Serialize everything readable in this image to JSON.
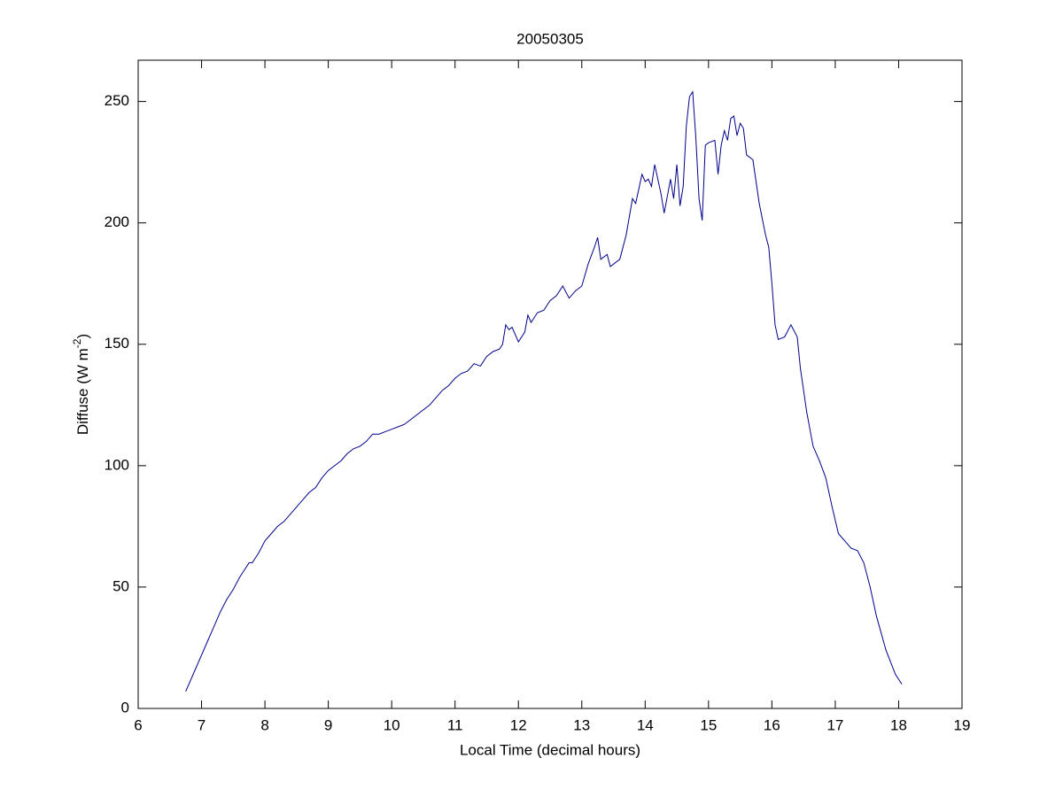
{
  "chart_data": {
    "type": "line",
    "title": "20050305",
    "x_label": "Local Time (decimal hours)",
    "y_label": {
      "text": "Diffuse (W m",
      "superscript": "-2",
      "suffix": ")"
    },
    "xlim": [
      6,
      19
    ],
    "xticks": [
      6,
      7,
      8,
      9,
      10,
      11,
      12,
      13,
      14,
      15,
      16,
      17,
      18,
      19
    ],
    "ylim": [
      0,
      267
    ],
    "yticks": [
      0,
      50,
      100,
      150,
      200,
      250
    ],
    "grid": false,
    "series": [
      {
        "name": "Diffuse",
        "color": "#00008b",
        "x": [
          6.75,
          6.9,
          7.0,
          7.1,
          7.2,
          7.3,
          7.4,
          7.5,
          7.6,
          7.7,
          7.75,
          7.8,
          7.9,
          8.0,
          8.1,
          8.2,
          8.3,
          8.4,
          8.5,
          8.6,
          8.7,
          8.8,
          8.9,
          9.0,
          9.1,
          9.2,
          9.3,
          9.4,
          9.5,
          9.6,
          9.7,
          9.8,
          9.9,
          10.0,
          10.1,
          10.2,
          10.3,
          10.4,
          10.5,
          10.6,
          10.7,
          10.8,
          10.9,
          11.0,
          11.1,
          11.2,
          11.3,
          11.4,
          11.5,
          11.6,
          11.7,
          11.75,
          11.8,
          11.85,
          11.9,
          12.0,
          12.1,
          12.15,
          12.2,
          12.3,
          12.4,
          12.5,
          12.6,
          12.7,
          12.8,
          12.9,
          13.0,
          13.1,
          13.2,
          13.25,
          13.3,
          13.4,
          13.45,
          13.6,
          13.7,
          13.8,
          13.85,
          13.95,
          14.0,
          14.05,
          14.1,
          14.15,
          14.25,
          14.3,
          14.4,
          14.45,
          14.5,
          14.55,
          14.6,
          14.65,
          14.7,
          14.75,
          14.8,
          14.85,
          14.9,
          14.95,
          15.0,
          15.1,
          15.15,
          15.2,
          15.25,
          15.3,
          15.35,
          15.4,
          15.45,
          15.5,
          15.55,
          15.6,
          15.7,
          15.8,
          15.9,
          15.95,
          16.0,
          16.05,
          16.1,
          16.2,
          16.3,
          16.4,
          16.45,
          16.55,
          16.65,
          16.75,
          16.85,
          16.95,
          17.05,
          17.15,
          17.25,
          17.35,
          17.45,
          17.55,
          17.65,
          17.8,
          17.95,
          18.05
        ],
        "values": [
          7,
          16,
          22,
          28,
          34,
          40,
          45,
          49,
          54,
          58,
          60,
          60,
          64,
          69,
          72,
          75,
          77,
          80,
          83,
          86,
          89,
          91,
          95,
          98,
          100,
          102,
          105,
          107,
          108,
          110,
          113,
          113,
          114,
          115,
          116,
          117,
          119,
          121,
          123,
          125,
          128,
          131,
          133,
          136,
          138,
          139,
          142,
          141,
          145,
          147,
          148,
          150,
          158,
          156,
          157,
          151,
          155,
          162,
          159,
          163,
          164,
          168,
          170,
          174,
          169,
          172,
          174,
          183,
          190,
          194,
          185,
          187,
          182,
          185,
          195,
          210,
          208,
          220,
          217,
          218,
          215,
          224,
          212,
          204,
          218,
          210,
          224,
          207,
          215,
          240,
          252,
          254,
          235,
          210,
          201,
          232,
          233,
          234,
          220,
          232,
          238,
          234,
          243,
          244,
          236,
          241,
          239,
          228,
          226,
          208,
          195,
          190,
          175,
          158,
          152,
          153,
          158,
          153,
          140,
          122,
          108,
          102,
          95,
          83,
          72,
          69,
          66,
          65,
          60,
          50,
          38,
          24,
          14,
          10
        ]
      }
    ]
  }
}
